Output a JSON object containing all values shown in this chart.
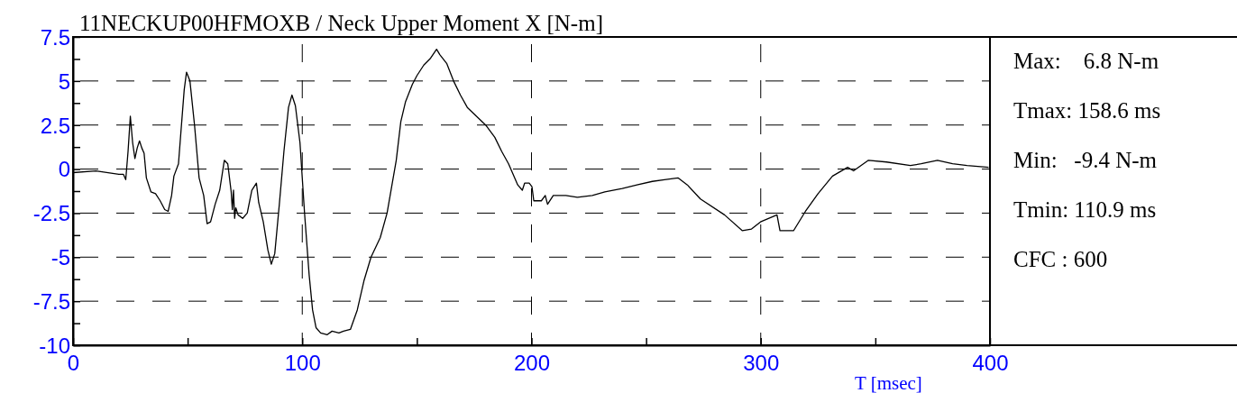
{
  "chart_data": {
    "type": "line",
    "title": "11NECKUP00HFMOXB / Neck Upper Moment X [N-m]",
    "xlabel": "T [msec]",
    "xlim": [
      0,
      400
    ],
    "ylim": [
      -10,
      7.5
    ],
    "xticks": [
      0,
      {
        "value": 50,
        "label": null
      },
      100,
      {
        "value": 150,
        "label": null
      },
      200,
      {
        "value": 250,
        "label": null
      },
      300,
      {
        "value": 350,
        "label": null
      },
      400
    ],
    "yticks": [
      -10,
      {
        "value": -8.75,
        "label": null
      },
      -7.5,
      {
        "value": -6.25,
        "label": null
      },
      -5,
      {
        "value": -3.75,
        "label": null
      },
      -2.5,
      {
        "value": -1.25,
        "label": null
      },
      0,
      {
        "value": 1.25,
        "label": null
      },
      2.5,
      {
        "value": 3.75,
        "label": null
      },
      5,
      {
        "value": 6.25,
        "label": null
      },
      7.5
    ],
    "grid": true,
    "line_style": "solid",
    "marker": "none",
    "annotations": [
      "Max:    6.8 N-m",
      "Tmax: 158.6 ms",
      "Min:   -9.4 N-m",
      "Tmin: 110.9 ms",
      "CFC : 600"
    ],
    "series": [
      {
        "color": "#000000",
        "x": [
          0,
          10,
          20,
          22,
          23,
          24,
          25,
          26,
          27,
          28,
          29,
          30,
          31,
          32,
          34,
          36,
          38,
          40,
          41.5,
          43,
          44,
          46,
          47,
          48.5,
          49.5,
          51,
          53,
          55,
          57,
          58.5,
          60,
          62,
          64,
          66,
          67.5,
          69,
          69.5,
          70,
          70.5,
          71,
          72,
          74,
          76,
          78,
          80,
          81,
          83,
          85,
          86.5,
          88,
          90,
          92,
          94,
          95.5,
          97,
          99,
          101,
          103,
          104.5,
          106,
          108,
          110.9,
          113,
          116,
          118,
          121,
          124,
          127,
          130,
          134,
          137,
          139,
          141,
          143,
          145,
          148,
          150,
          153,
          156,
          158.6,
          160,
          163,
          166,
          169,
          172,
          176,
          180,
          184,
          187,
          190,
          194,
          196,
          197,
          199,
          200.2,
          201,
          204.3,
          206,
          207,
          209.5,
          215,
          220,
          226.5,
          232,
          239.6,
          246,
          252.7,
          258,
          263.9,
          268,
          273.7,
          284.2,
          292,
          296,
          299.9,
          307.1,
          308.4,
          314.3,
          319.5,
          325,
          331.3,
          337.9,
          340.5,
          347,
          354.9,
          365.3,
          370,
          377.1,
          383.7,
          390,
          399.4
        ],
        "values": [
          -0.2,
          -0.1,
          -0.3,
          -0.3,
          -0.6,
          1,
          3.0,
          1.5,
          0.6,
          1.2,
          1.6,
          1.2,
          0.9,
          -0.5,
          -1.3,
          -1.4,
          -1.8,
          -2.3,
          -2.4,
          -1.5,
          -0.4,
          0.3,
          2,
          4.5,
          5.5,
          5.0,
          2.5,
          -0.5,
          -1.5,
          -3.1,
          -3.0,
          -2.0,
          -1.2,
          0.5,
          0.3,
          -1.3,
          -2.3,
          -1.2,
          -2.8,
          -2.2,
          -2.6,
          -2.8,
          -2.5,
          -1.2,
          -0.8,
          -1.9,
          -3.0,
          -4.6,
          -5.4,
          -4.8,
          -2.0,
          1.0,
          3.5,
          4.2,
          3.6,
          1.5,
          -2.5,
          -6.0,
          -8.0,
          -9.0,
          -9.3,
          -9.4,
          -9.2,
          -9.3,
          -9.2,
          -9.1,
          -8.0,
          -6.3,
          -5.0,
          -3.9,
          -2.5,
          -1.0,
          0.5,
          2.7,
          3.8,
          4.8,
          5.3,
          5.9,
          6.3,
          6.8,
          6.5,
          6.0,
          5.0,
          4.2,
          3.5,
          3.0,
          2.5,
          1.8,
          1.0,
          0.3,
          -0.9,
          -1.2,
          -0.8,
          -0.8,
          -1.0,
          -1.8,
          -1.8,
          -1.5,
          -2.0,
          -1.5,
          -1.5,
          -1.6,
          -1.5,
          -1.3,
          -1.1,
          -0.9,
          -0.7,
          -0.6,
          -0.5,
          -0.9,
          -1.7,
          -2.6,
          -3.5,
          -3.4,
          -3.0,
          -2.6,
          -3.5,
          -3.5,
          -2.4,
          -1.4,
          -0.4,
          0.1,
          -0.1,
          0.5,
          0.4,
          0.2,
          0.3,
          0.5,
          0.3,
          0.2,
          0.1
        ]
      }
    ]
  }
}
